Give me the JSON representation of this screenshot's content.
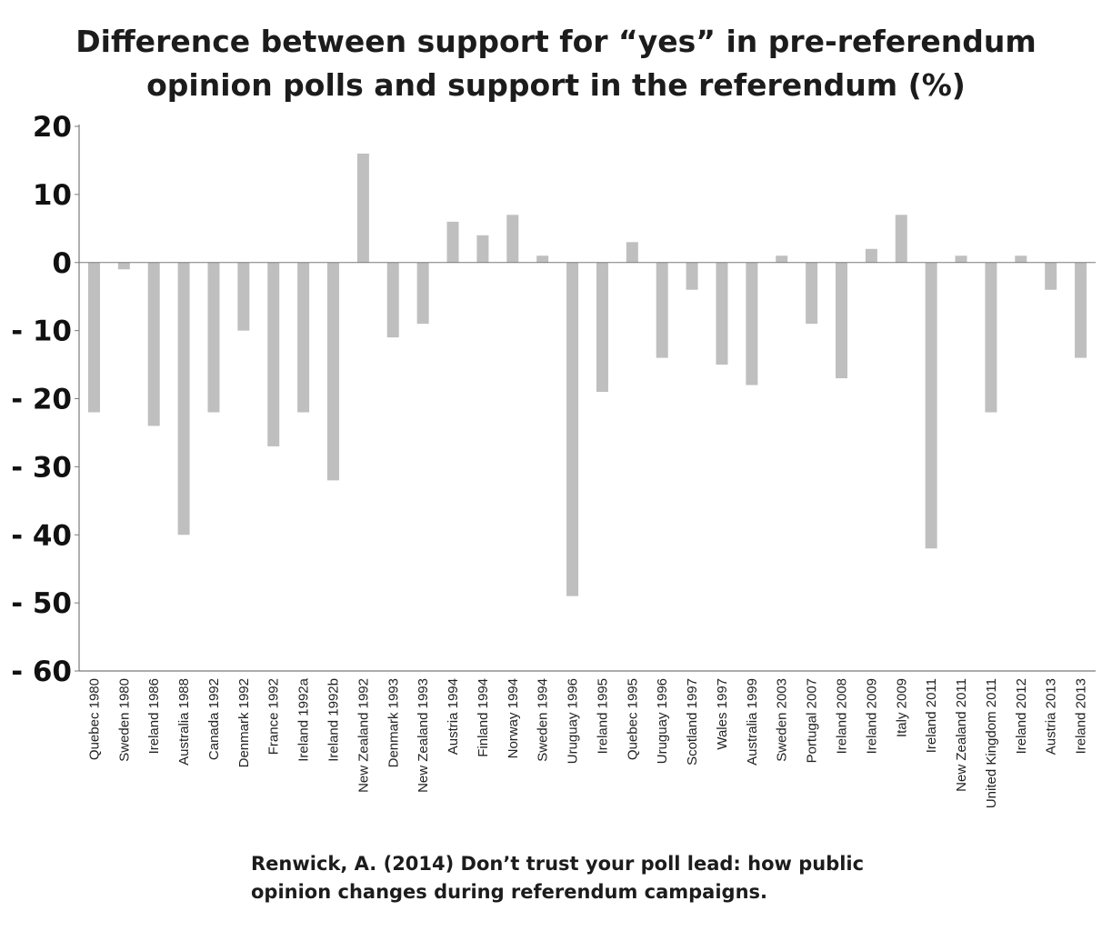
{
  "chart_data": {
    "type": "bar",
    "title_lines": [
      "Difference between support for “yes” in pre-referendum",
      "opinion polls and support in the referendum (%)"
    ],
    "categories": [
      "Quebec 1980",
      "Sweden 1980",
      "Ireland 1986",
      "Australia 1988",
      "Canada 1992",
      "Denmark 1992",
      "France 1992",
      "Ireland 1992a",
      "Ireland 1992b",
      "New Zealand 1992",
      "Denmark 1993",
      "New Zealand 1993",
      "Austria 1994",
      "Finland 1994",
      "Norway 1994",
      "Sweden 1994",
      "Uruguay 1996",
      "Ireland 1995",
      "Quebec 1995",
      "Uruguay 1996",
      "Scotland 1997",
      "Wales 1997",
      "Australia 1999",
      "Sweden 2003",
      "Portugal 2007",
      "Ireland 2008",
      "Ireland 2009",
      "Italy 2009",
      "Ireland 2011",
      "New Zealand 2011",
      "United Kingdom 2011",
      "Ireland 2012",
      "Austria 2013",
      "Ireland 2013"
    ],
    "values": [
      -22,
      -1,
      -24,
      -40,
      -22,
      -10,
      -27,
      -22,
      -32,
      16,
      -11,
      -9,
      6,
      4,
      7,
      1,
      -49,
      -19,
      3,
      -14,
      -4,
      -15,
      -18,
      1,
      -9,
      -17,
      2,
      7,
      -42,
      1,
      -22,
      1,
      -4,
      -14
    ],
    "ylim": [
      -60,
      20
    ],
    "yticks": [
      20,
      10,
      0,
      -10,
      -20,
      -30,
      -40,
      -50,
      -60
    ],
    "ytick_labels": [
      "20",
      "10",
      "0",
      "- 10",
      "- 20",
      "- 30",
      "- 40",
      "- 50",
      "- 60"
    ],
    "xlabel": "",
    "ylabel": "",
    "grid": false,
    "bar_color": "#bfbfbf",
    "axis_color": "#7a7a7a"
  },
  "citation_lines": [
    "Renwick, A. (2014) Don’t trust your poll lead: how public",
    "opinion changes during referendum campaigns."
  ]
}
